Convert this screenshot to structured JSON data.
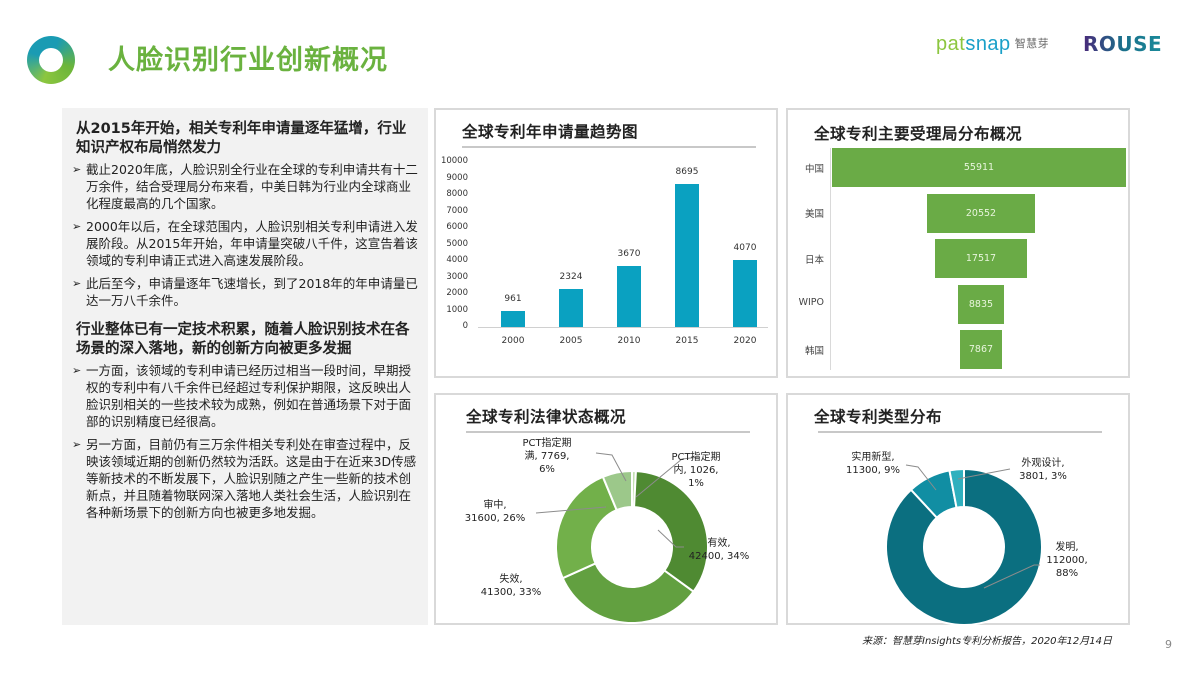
{
  "header": {
    "title": "人脸识别行业创新概况",
    "logos": {
      "patsnap_pat": "pat",
      "patsnap_snap": "snap",
      "patsnap_cn": "智慧芽",
      "rouse": "ROUSE"
    }
  },
  "left_panel": {
    "section1": {
      "heading": "从2015年开始，相关专利年申请量逐年猛增，行业知识产权布局悄然发力",
      "bullets": [
        "截止2020年底，人脸识别全行业在全球的专利申请共有十二万余件，结合受理局分布来看，中美日韩为行业内全球商业化程度最高的几个国家。",
        "2000年以后，在全球范围内，人脸识别相关专利申请进入发展阶段。从2015年开始，年申请量突破八千件，这宣告着该领域的专利申请正式进入高速发展阶段。",
        "此后至今，申请量逐年飞速增长，到了2018年的年申请量已达一万八千余件。"
      ]
    },
    "section2": {
      "heading": "行业整体已有一定技术积累，随着人脸识别技术在各场景的深入落地，新的创新方向被更多发掘",
      "bullets": [
        "一方面，该领域的专利申请已经历过相当一段时间，早期授权的专利中有八千余件已经超过专利保护期限，这反映出人脸识别相关的一些技术较为成熟，例如在普通场景下对于面部的识别精度已经很高。",
        "另一方面，目前仍有三万余件相关专利处在审查过程中，反映该领域近期的创新仍然较为活跃。这是由于在近来3D传感等新技术的不断发展下，人脸识别随之产生一些新的技术创新点，并且随着物联网深入落地人类社会生活，人脸识别在各种新场景下的创新方向也被更多地发掘。"
      ]
    }
  },
  "chart_data": [
    {
      "type": "bar",
      "title": "全球专利年申请量趋势图",
      "categories": [
        "2000",
        "2005",
        "2010",
        "2015",
        "2020"
      ],
      "values": [
        961,
        2324,
        3670,
        8695,
        4070
      ],
      "value_labels": [
        "961",
        "2324",
        "3670",
        "8695",
        "4070"
      ],
      "yticks": [
        "10000",
        "9000",
        "8000",
        "7000",
        "6000",
        "5000",
        "4000",
        "3000",
        "2000",
        "1000",
        "0"
      ],
      "ylim": [
        0,
        10000
      ],
      "xlabel": "",
      "ylabel": "",
      "color": "#0aa1c1",
      "grid": false
    },
    {
      "type": "bar",
      "orientation": "horizontal-funnel",
      "title": "全球专利主要受理局分布概况",
      "categories": [
        "中国",
        "美国",
        "日本",
        "WIPO",
        "韩国"
      ],
      "values": [
        55911,
        20552,
        17517,
        8835,
        7867
      ],
      "value_labels": [
        "55911",
        "20552",
        "17517",
        "8835",
        "7867"
      ],
      "color": "#6aab46"
    },
    {
      "type": "pie",
      "style": "donut",
      "title": "全球专利法律状态概况",
      "slices": [
        {
          "name": "有效",
          "value": 42400,
          "percent": 34,
          "color": "#4f8a32",
          "label": "有效,\n42400, 34%"
        },
        {
          "name": "失效",
          "value": 41300,
          "percent": 33,
          "color": "#62a040",
          "label": "失效,\n41300, 33%"
        },
        {
          "name": "审中",
          "value": 31600,
          "percent": 26,
          "color": "#72b04a",
          "label": "审中,\n31600, 26%"
        },
        {
          "name": "PCT指定期满",
          "value": 7769,
          "percent": 6,
          "color": "#9cc88a",
          "label": "PCT指定期\n满, 7769,\n6%"
        },
        {
          "name": "PCT指定期内",
          "value": 1026,
          "percent": 1,
          "color": "#c4e0b2",
          "label": "PCT指定期\n内, 1026,\n1%"
        }
      ]
    },
    {
      "type": "pie",
      "style": "donut",
      "title": "全球专利类型分布",
      "slices": [
        {
          "name": "发明",
          "value": 112000,
          "percent": 88,
          "color": "#0b6f80",
          "label": "发明,\n112000,\n88%"
        },
        {
          "name": "实用新型",
          "value": 11300,
          "percent": 9,
          "color": "#118ea3",
          "label": "实用新型,\n11300, 9%"
        },
        {
          "name": "外观设计",
          "value": 3801,
          "percent": 3,
          "color": "#2fb0be",
          "label": "外观设计,\n3801, 3%"
        }
      ]
    }
  ],
  "labels": {
    "legal": {
      "youxiao_1": "有效,",
      "youxiao_2": "42400, 34%",
      "shixiao_1": "失效,",
      "shixiao_2": "41300, 33%",
      "shenzhong_1": "审中,",
      "shenzhong_2": "31600, 26%",
      "pct_man_1": "PCT指定期",
      "pct_man_2": "满, 7769,",
      "pct_man_3": "6%",
      "pct_nei_1": "PCT指定期",
      "pct_nei_2": "内, 1026,",
      "pct_nei_3": "1%"
    },
    "type": {
      "faming_1": "发明,",
      "faming_2": "112000,",
      "faming_3": "88%",
      "shiyong_1": "实用新型,",
      "shiyong_2": "11300, 9%",
      "waiguan_1": "外观设计,",
      "waiguan_2": "3801, 3%"
    }
  },
  "footer": {
    "source": "来源：智慧芽Insights专利分析报告，2020年12月14日",
    "page_number": "9"
  }
}
